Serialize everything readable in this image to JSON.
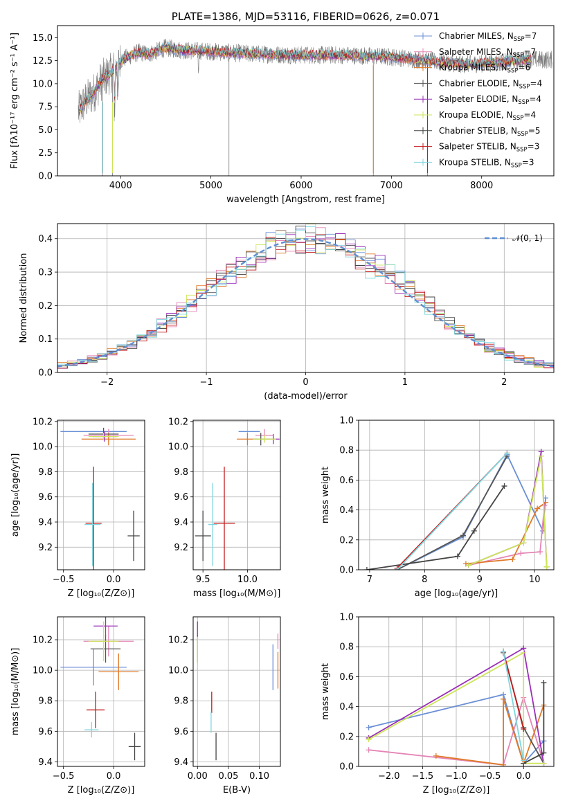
{
  "colors": {
    "chabrier_miles": "#6a8fd6",
    "salpeter_miles": "#e585b6",
    "kroupa_miles": "#e07a2a",
    "chabrier_elodie": "#555555",
    "salpeter_elodie": "#9a2fb7",
    "kroupa_elodie": "#cde65a",
    "chabrier_stelib": "#444444",
    "salpeter_stelib": "#c21c1c",
    "kroupa_stelib": "#7fd6df",
    "normal": "#5e8fd2"
  },
  "models": [
    {
      "key": "chabrier_miles",
      "label": "Chabrier MILES, N",
      "sub": "SSP",
      "eq": "=7"
    },
    {
      "key": "salpeter_miles",
      "label": "Salpeter MILES, N",
      "sub": "SSP",
      "eq": "=7"
    },
    {
      "key": "kroupa_miles",
      "label": "Kroupa MILES, N",
      "sub": "SSP",
      "eq": "=6"
    },
    {
      "key": "chabrier_elodie",
      "label": "Chabrier ELODIE, N",
      "sub": "SSP",
      "eq": "=4"
    },
    {
      "key": "salpeter_elodie",
      "label": "Salpeter ELODIE, N",
      "sub": "SSP",
      "eq": "=4"
    },
    {
      "key": "kroupa_elodie",
      "label": "Kroupa ELODIE, N",
      "sub": "SSP",
      "eq": "=4"
    },
    {
      "key": "chabrier_stelib",
      "label": "Chabrier STELIB, N",
      "sub": "SSP",
      "eq": "=5"
    },
    {
      "key": "salpeter_stelib",
      "label": "Salpeter STELIB, N",
      "sub": "SSP",
      "eq": "=3"
    },
    {
      "key": "kroupa_stelib",
      "label": "Kroupa STELIB, N",
      "sub": "SSP",
      "eq": "=3"
    }
  ],
  "chart_data": [
    {
      "id": "spectrum",
      "type": "line",
      "title": "PLATE=1386, MJD=53116, FIBERID=0626, z=0.071",
      "xlabel": "wavelength [Angstrom, rest frame]",
      "ylabel": "Flux [fλ10⁻¹⁷ erg cm⁻² s⁻¹ A⁻¹]",
      "xlim": [
        3300,
        8800
      ],
      "ylim": [
        0,
        16.3
      ],
      "xticks": [
        4000,
        5000,
        6000,
        7000,
        8000
      ],
      "yticks": [
        0.0,
        2.5,
        5.0,
        7.5,
        10.0,
        12.5,
        15.0
      ],
      "ytick_labels": [
        "0.0",
        "2.5",
        "5.0",
        "7.5",
        "10.0",
        "12.5",
        "15.0"
      ],
      "continuum": {
        "x": [
          3500,
          3600,
          3700,
          3800,
          3900,
          4000,
          4100,
          4200,
          4300,
          4400,
          4500,
          4700,
          5000,
          5300,
          5600,
          6000,
          6500,
          7000,
          7400,
          7800,
          8200,
          8500
        ],
        "y": [
          6.5,
          8.0,
          9.0,
          10.5,
          11.2,
          12.5,
          13.0,
          13.4,
          13.2,
          13.5,
          13.9,
          13.6,
          13.5,
          13.3,
          13.2,
          13.1,
          13.1,
          12.9,
          12.5,
          12.1,
          12.3,
          12.6
        ]
      },
      "legend_position": "upper-right"
    },
    {
      "id": "residuals",
      "type": "histogram",
      "xlabel": "(data-model)/error",
      "ylabel": "Normed distribution",
      "xlim": [
        -2.5,
        2.5
      ],
      "ylim": [
        0,
        0.445
      ],
      "xticks": [
        -2,
        -1,
        0,
        1,
        2
      ],
      "xtick_labels": [
        "−2",
        "−1",
        "0",
        "1",
        "2"
      ],
      "yticks": [
        0.0,
        0.1,
        0.2,
        0.3,
        0.4
      ],
      "ytick_labels": [
        "0.0",
        "0.1",
        "0.2",
        "0.3",
        "0.4"
      ],
      "bin_width": 0.1,
      "legend": "𝒩(0, 1)",
      "legend_position": "upper-right",
      "grid": true
    },
    {
      "id": "age_vs_Z",
      "type": "errorbar",
      "xlabel": "Z [log₁₀(Z/Z⊙)]",
      "ylabel": "age  [log₁₀(age/yr)]",
      "xlim": [
        -0.56,
        0.31
      ],
      "ylim": [
        9.02,
        10.21
      ],
      "xticks": [
        -0.5,
        0.0
      ],
      "xtick_labels": [
        "−0.5",
        "0.0"
      ],
      "yticks": [
        9.2,
        9.4,
        9.6,
        9.8,
        10.0,
        10.2
      ],
      "ytick_labels": [
        "9.2",
        "9.4",
        "9.6",
        "9.8",
        "10.0",
        "10.2"
      ],
      "points": [
        {
          "m": "chabrier_miles",
          "x": -0.2,
          "xerr": 0.33,
          "y": 10.12,
          "yerr": 0.0
        },
        {
          "m": "salpeter_miles",
          "x": -0.05,
          "xerr": 0.25,
          "y": 10.09,
          "yerr": 0.05
        },
        {
          "m": "kroupa_miles",
          "x": -0.05,
          "xerr": 0.27,
          "y": 10.06,
          "yerr": 0.05
        },
        {
          "m": "chabrier_elodie",
          "x": -0.1,
          "xerr": 0.15,
          "y": 10.1,
          "yerr": 0.05
        },
        {
          "m": "salpeter_elodie",
          "x": -0.09,
          "xerr": 0.12,
          "y": 10.08,
          "yerr": 0.04
        },
        {
          "m": "kroupa_elodie",
          "x": -0.1,
          "xerr": 0.15,
          "y": 10.08,
          "yerr": 0.03
        },
        {
          "m": "chabrier_stelib",
          "x": 0.2,
          "xerr": 0.06,
          "y": 9.29,
          "yerr": 0.2
        },
        {
          "m": "salpeter_stelib",
          "x": -0.2,
          "xerr": 0.08,
          "y": 9.39,
          "yerr": 0.45
        },
        {
          "m": "kroupa_stelib",
          "x": -0.21,
          "xerr": 0.08,
          "y": 9.38,
          "yerr": 0.33
        }
      ]
    },
    {
      "id": "age_vs_mass",
      "type": "errorbar",
      "xlabel": "mass [log₁₀(M/M⊙)]",
      "ylabel": "",
      "xlim": [
        9.39,
        10.37
      ],
      "ylim": [
        9.02,
        10.21
      ],
      "xticks": [
        9.5,
        10.0
      ],
      "xtick_labels": [
        "9.5",
        "10.0"
      ],
      "yticks": [
        9.2,
        9.4,
        9.6,
        9.8,
        10.0,
        10.2
      ],
      "ytick_labels": [
        "9.2",
        "9.4",
        "9.6",
        "9.8",
        "10.0",
        "10.2"
      ],
      "points": [
        {
          "m": "chabrier_miles",
          "x": 10.02,
          "xerr": 0.12,
          "y": 10.12,
          "yerr": 0.0
        },
        {
          "m": "salpeter_miles",
          "x": 10.19,
          "xerr": 0.1,
          "y": 10.09,
          "yerr": 0.05
        },
        {
          "m": "kroupa_miles",
          "x": 10.0,
          "xerr": 0.12,
          "y": 10.06,
          "yerr": 0.05
        },
        {
          "m": "chabrier_elodie",
          "x": 10.15,
          "xerr": 0.09,
          "y": 10.06,
          "yerr": 0.05
        },
        {
          "m": "salpeter_elodie",
          "x": 10.29,
          "xerr": 0.07,
          "y": 10.06,
          "yerr": 0.04
        },
        {
          "m": "kroupa_elodie",
          "x": 10.19,
          "xerr": 0.13,
          "y": 10.06,
          "yerr": 0.03
        },
        {
          "m": "chabrier_stelib",
          "x": 9.5,
          "xerr": 0.09,
          "y": 9.29,
          "yerr": 0.2
        },
        {
          "m": "salpeter_stelib",
          "x": 9.74,
          "xerr": 0.12,
          "y": 9.39,
          "yerr": 0.45
        },
        {
          "m": "kroupa_stelib",
          "x": 9.61,
          "xerr": 0.05,
          "y": 9.38,
          "yerr": 0.33
        }
      ]
    },
    {
      "id": "mass_weight_vs_age",
      "type": "line",
      "xlabel": "age  [log₁₀(age/yr)]",
      "ylabel": "mass weight",
      "xlim": [
        6.8,
        10.35
      ],
      "ylim": [
        0,
        1.0
      ],
      "xticks": [
        7,
        8,
        9,
        10
      ],
      "xtick_labels": [
        "7",
        "8",
        "9",
        "10"
      ],
      "yticks": [
        0.0,
        0.2,
        0.4,
        0.6,
        0.8,
        1.0
      ],
      "ytick_labels": [
        "0.0",
        "0.2",
        "0.4",
        "0.6",
        "0.8",
        "1.0"
      ],
      "series": [
        {
          "m": "chabrier_miles",
          "x": [
            7.5,
            8.7,
            9.5,
            10.15,
            10.2
          ],
          "y": [
            0.0,
            0.22,
            0.77,
            0.26,
            0.48
          ]
        },
        {
          "m": "salpeter_miles",
          "x": [
            8.8,
            9.75,
            10.1,
            10.18
          ],
          "y": [
            0.03,
            0.11,
            0.12,
            0.43
          ]
        },
        {
          "m": "kroupa_miles",
          "x": [
            8.75,
            9.6,
            10.05,
            10.2
          ],
          "y": [
            0.04,
            0.07,
            0.41,
            0.45
          ]
        },
        {
          "m": "chabrier_elodie",
          "x": [
            7.5,
            8.7,
            9.5
          ],
          "y": [
            0.0,
            0.23,
            0.76
          ]
        },
        {
          "m": "salpeter_elodie",
          "x": [
            8.8,
            9.8,
            10.12,
            10.22
          ],
          "y": [
            0.03,
            0.18,
            0.79,
            0.02
          ]
        },
        {
          "m": "kroupa_elodie",
          "x": [
            8.8,
            9.8,
            10.12,
            10.22
          ],
          "y": [
            0.03,
            0.18,
            0.76,
            0.02
          ]
        },
        {
          "m": "chabrier_stelib",
          "x": [
            6.95,
            8.6,
            8.9,
            9.45
          ],
          "y": [
            0.0,
            0.09,
            0.26,
            0.56
          ]
        },
        {
          "m": "salpeter_stelib",
          "x": [
            7.5,
            9.5
          ],
          "y": [
            0.01,
            0.78
          ]
        },
        {
          "m": "kroupa_stelib",
          "x": [
            7.5,
            9.5
          ],
          "y": [
            0.0,
            0.78
          ]
        }
      ],
      "grid": true
    },
    {
      "id": "mass_vs_Z",
      "type": "errorbar",
      "xlabel": "Z [log₁₀(Z/Z⊙)]",
      "ylabel": "mass [log₁₀(M/M⊙)]",
      "xlim": [
        -0.56,
        0.31
      ],
      "ylim": [
        9.37,
        10.35
      ],
      "xticks": [
        -0.5,
        0.0
      ],
      "xtick_labels": [
        "−0.5",
        "0.0"
      ],
      "yticks": [
        9.4,
        9.6,
        9.8,
        10.0,
        10.2
      ],
      "ytick_labels": [
        "9.4",
        "9.6",
        "9.8",
        "10.0",
        "10.2"
      ],
      "points": [
        {
          "m": "chabrier_miles",
          "x": -0.2,
          "xerr": 0.33,
          "y": 10.02,
          "yerr": 0.12
        },
        {
          "m": "salpeter_miles",
          "x": -0.05,
          "xerr": 0.25,
          "y": 10.19,
          "yerr": 0.1
        },
        {
          "m": "kroupa_miles",
          "x": 0.05,
          "xerr": 0.2,
          "y": 9.99,
          "yerr": 0.12
        },
        {
          "m": "chabrier_elodie",
          "x": -0.08,
          "xerr": 0.15,
          "y": 10.14,
          "yerr": 0.09
        },
        {
          "m": "salpeter_elodie",
          "x": -0.08,
          "xerr": 0.12,
          "y": 10.29,
          "yerr": 0.07
        },
        {
          "m": "kroupa_elodie",
          "x": -0.1,
          "xerr": 0.15,
          "y": 10.19,
          "yerr": 0.13
        },
        {
          "m": "chabrier_stelib",
          "x": 0.21,
          "xerr": 0.06,
          "y": 9.5,
          "yerr": 0.09
        },
        {
          "m": "salpeter_stelib",
          "x": -0.18,
          "xerr": 0.09,
          "y": 9.74,
          "yerr": 0.12
        },
        {
          "m": "kroupa_stelib",
          "x": -0.22,
          "xerr": 0.07,
          "y": 9.61,
          "yerr": 0.05
        }
      ]
    },
    {
      "id": "mass_vs_ebv",
      "type": "errorbar",
      "xlabel": "E(B-V)",
      "ylabel": "",
      "xlim": [
        -0.007,
        0.134
      ],
      "ylim": [
        9.37,
        10.35
      ],
      "xticks": [
        0.0,
        0.05,
        0.1
      ],
      "xtick_labels": [
        "0.00",
        "0.05",
        "0.10"
      ],
      "yticks": [
        9.4,
        9.6,
        9.8,
        10.0,
        10.2
      ],
      "ytick_labels": [
        "9.4",
        "9.6",
        "9.8",
        "10.0",
        "10.2"
      ],
      "points": [
        {
          "m": "chabrier_miles",
          "x": 0.122,
          "xerr": 0.0,
          "y": 10.02,
          "yerr": 0.15
        },
        {
          "m": "salpeter_miles",
          "x": 0.13,
          "xerr": 0.0,
          "y": 10.19,
          "yerr": 0.05
        },
        {
          "m": "kroupa_miles",
          "x": 0.13,
          "xerr": 0.0,
          "y": 10.0,
          "yerr": 0.12
        },
        {
          "m": "chabrier_elodie",
          "x": 0.0,
          "xerr": 0.0,
          "y": 10.14,
          "yerr": 0.09
        },
        {
          "m": "salpeter_elodie",
          "x": 0.0,
          "xerr": 0.0,
          "y": 10.26,
          "yerr": 0.06
        },
        {
          "m": "kroupa_elodie",
          "x": 0.0,
          "xerr": 0.0,
          "y": 10.13,
          "yerr": 0.09
        },
        {
          "m": "chabrier_stelib",
          "x": 0.03,
          "xerr": 0.0,
          "y": 9.5,
          "yerr": 0.09
        },
        {
          "m": "salpeter_stelib",
          "x": 0.023,
          "xerr": 0.0,
          "y": 9.79,
          "yerr": 0.07
        },
        {
          "m": "kroupa_stelib",
          "x": 0.022,
          "xerr": 0.0,
          "y": 9.66,
          "yerr": 0.07
        }
      ]
    },
    {
      "id": "mass_weight_vs_Z",
      "type": "line",
      "xlabel": "Z [log₁₀(Z/Z⊙)]",
      "ylabel": "mass weight",
      "xlim": [
        -2.45,
        0.45
      ],
      "ylim": [
        0,
        1.0
      ],
      "xticks": [
        -2.0,
        -1.5,
        -1.0,
        -0.5,
        0.0
      ],
      "xtick_labels": [
        "−2.0",
        "−1.5",
        "−1.0",
        "−0.5",
        "0.0"
      ],
      "yticks": [
        0.0,
        0.2,
        0.4,
        0.6,
        0.8,
        1.0
      ],
      "ytick_labels": [
        "0.0",
        "0.2",
        "0.4",
        "0.6",
        "0.8",
        "1.0"
      ],
      "series": [
        {
          "m": "chabrier_miles",
          "x": [
            -2.3,
            -0.3,
            0.0,
            0.3
          ],
          "y": [
            0.26,
            0.48,
            0.02,
            0.17
          ]
        },
        {
          "m": "salpeter_miles",
          "x": [
            -2.3,
            -0.3,
            0.0,
            0.3
          ],
          "y": [
            0.11,
            0.01,
            0.46,
            0.02
          ]
        },
        {
          "m": "kroupa_miles",
          "x": [
            -1.3,
            -0.3,
            -0.3,
            0.0,
            0.3
          ],
          "y": [
            0.07,
            0.01,
            0.45,
            0.02,
            0.41
          ]
        },
        {
          "m": "chabrier_elodie",
          "x": [
            -0.3,
            0.0,
            0.3
          ],
          "y": [
            0.76,
            0.26,
            0.02
          ]
        },
        {
          "m": "salpeter_elodie",
          "x": [
            -2.3,
            0.0,
            0.3
          ],
          "y": [
            0.19,
            0.79,
            0.02
          ]
        },
        {
          "m": "kroupa_elodie",
          "x": [
            -2.3,
            0.0,
            0.0,
            0.3
          ],
          "y": [
            0.18,
            0.76,
            0.02,
            0.02
          ]
        },
        {
          "m": "chabrier_stelib",
          "x": [
            0.0,
            0.3,
            0.3
          ],
          "y": [
            0.02,
            0.09,
            0.56
          ]
        },
        {
          "m": "salpeter_stelib",
          "x": [
            -0.3,
            0.0
          ],
          "y": [
            0.77,
            0.25
          ]
        },
        {
          "m": "kroupa_stelib",
          "x": [
            -0.3,
            0.0
          ],
          "y": [
            0.77,
            0.04
          ]
        }
      ],
      "grid": true
    }
  ]
}
